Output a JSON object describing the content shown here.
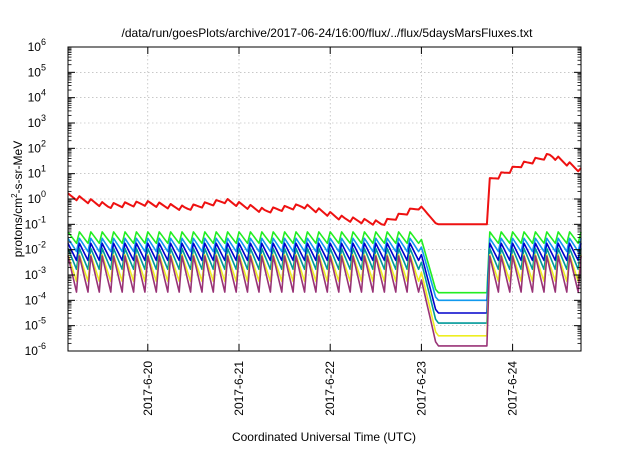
{
  "chart_data": {
    "type": "line",
    "title": "/data/run/goesPlots/archive/2017-06-24/16:00/flux/../flux/5daysMarsFluxes.txt",
    "xlabel": "Coordinated Universal Time (UTC)",
    "ylabel": "protons/cm2-s-sr-MeV",
    "ylabel_parts": {
      "before": "protons/cm",
      "sup": "2",
      "after": "-s-sr-MeV"
    },
    "yscale": "log",
    "ylim_exp": [
      -6,
      6
    ],
    "y_tick_base": "10",
    "y_tick_exponents": [
      "-6",
      "-5",
      "-4",
      "-3",
      "-2",
      "-1",
      "0",
      "1",
      "2",
      "3",
      "4",
      "5",
      "6"
    ],
    "x_range_days": [
      "2017-06-19T03:00",
      "2017-06-24T18:00"
    ],
    "x_ticks": [
      "2017-6-20",
      "2017-6-21",
      "2017-6-22",
      "2017-6-23",
      "2017-6-24"
    ],
    "grid": true,
    "series_shape": {
      "sawtooth_period_hours": 3,
      "dropout_start_hour_of_6_23": 0,
      "dropout_end_hour_of_6_23": 18
    },
    "series": [
      {
        "color": "#ee1111",
        "log_base": [
          0.1,
          -0.3,
          -0.2,
          -0.4,
          -0.1,
          -0.5,
          -0.3,
          -0.8,
          -1.0,
          -0.3
        ],
        "amp": 0.25,
        "log_dropout": -1.0,
        "log_after": [
          0.7,
          1.3,
          1.7,
          1.1
        ]
      },
      {
        "color": "#22ee22",
        "log_base": -1.6,
        "amp": 0.6,
        "log_dropout": -3.7,
        "log_after": -1.6
      },
      {
        "color": "#1199ee",
        "log_base": -1.9,
        "amp": 0.7,
        "log_dropout": -4.0,
        "log_after": -1.9
      },
      {
        "color": "#0000cc",
        "log_base": -2.2,
        "amp": 0.9,
        "log_dropout": -4.5,
        "log_after": -2.2
      },
      {
        "color": "#009999",
        "log_base": -2.5,
        "amp": 1.1,
        "log_dropout": -4.9,
        "log_after": -2.5
      },
      {
        "color": "#eeee22",
        "log_base": -2.9,
        "amp": 1.4,
        "log_dropout": -5.4,
        "log_after": -2.9
      },
      {
        "color": "#993377",
        "log_base": -3.2,
        "amp": 1.9,
        "log_dropout": -5.8,
        "log_after": -3.2
      }
    ]
  }
}
